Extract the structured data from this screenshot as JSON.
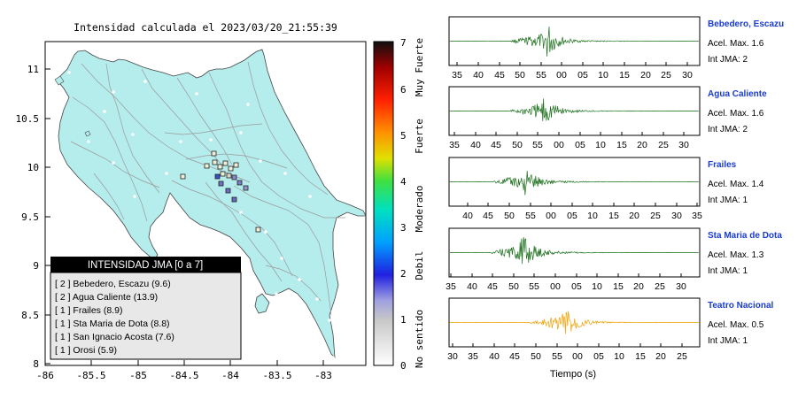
{
  "map": {
    "title": "Intensidad calculada el 2023/03/20_21:55:39",
    "x_ticks": [
      "-86",
      "-85.5",
      "-85",
      "-84.5",
      "-84",
      "-83.5",
      "-83"
    ],
    "y_ticks": [
      "11",
      "10.5",
      "10",
      "9.5",
      "9",
      "8.5",
      "8"
    ],
    "legend_title": "INTENSIDAD JMA [0 a 7]",
    "legend_items": [
      "[ 2 ]  Bebedero, Escazu (9.6)",
      "[ 2 ]  Agua Caliente (13.9)",
      "[ 1 ]  Frailes (8.9)",
      "[ 1 ]  Sta Maria de Dota (8.8)",
      "[ 1 ]  San Ignacio Acosta (7.6)",
      "[ 1 ]  Orosi (5.9)"
    ],
    "colors": {
      "land": "#b5ecec",
      "road": "#9a9a9a",
      "border": "#444444"
    }
  },
  "colorbar": {
    "tick_labels": [
      "7",
      "6",
      "5",
      "4",
      "3",
      "2",
      "1",
      "0"
    ],
    "categories": [
      "Muy Fuerte",
      "Fuerte",
      "Moderado",
      "Debil",
      "No sentido"
    ]
  },
  "seismograms": [
    {
      "station": "Bebedero, Escazu",
      "accel": "Acel. Max. 1.6",
      "int": "Int JMA: 2",
      "color": "#1a6e1a",
      "ticks": [
        "35",
        "40",
        "45",
        "50",
        "55",
        "00",
        "05",
        "10",
        "15",
        "20",
        "25",
        "30"
      ]
    },
    {
      "station": "Agua Caliente",
      "accel": "Acel. Max. 1.6",
      "int": "Int JMA: 2",
      "color": "#1a6e1a",
      "ticks": [
        "35",
        "40",
        "45",
        "50",
        "55",
        "00",
        "05",
        "10",
        "15",
        "20",
        "25",
        "30"
      ]
    },
    {
      "station": "Frailes",
      "accel": "Acel. Max. 1.4",
      "int": "Int JMA: 1",
      "color": "#1a6e1a",
      "ticks": [
        "40",
        "45",
        "50",
        "55",
        "00",
        "05",
        "10",
        "15",
        "20",
        "25",
        "30",
        "35"
      ]
    },
    {
      "station": "Sta Maria de Dota",
      "accel": "Acel. Max. 1.3",
      "int": "Int JMA: 1",
      "color": "#1a6e1a",
      "ticks": [
        "35",
        "40",
        "45",
        "50",
        "55",
        "00",
        "05",
        "10",
        "15",
        "20",
        "25",
        "30"
      ]
    },
    {
      "station": "Teatro Nacional",
      "accel": "Acel. Max. 0.5",
      "int": "Int JMA: 1",
      "color": "#f0a000",
      "ticks": [
        "30",
        "35",
        "40",
        "45",
        "50",
        "55",
        "00",
        "05",
        "10",
        "15",
        "20",
        "25"
      ]
    }
  ],
  "xlabel": "Tiempo (s)"
}
